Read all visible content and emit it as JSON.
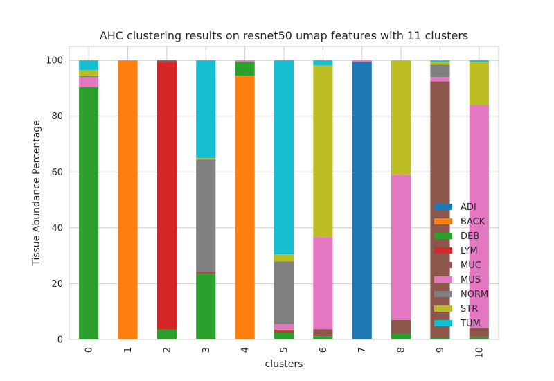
{
  "chart_data": {
    "type": "bar",
    "stacked": true,
    "title": "AHC clustering results on resnet50 umap features with 11 clusters",
    "xlabel": "clusters",
    "ylabel": "Tissue Abundance Percentage",
    "ylim": [
      0,
      105
    ],
    "yticks": [
      0,
      20,
      40,
      60,
      80,
      100
    ],
    "grid": true,
    "legend_position": "lower-right",
    "categories": [
      "0",
      "1",
      "2",
      "3",
      "4",
      "5",
      "6",
      "7",
      "8",
      "9",
      "10"
    ],
    "series": [
      {
        "name": "ADI",
        "color": "#1f77b4",
        "values": [
          0,
          0,
          0,
          0,
          0,
          0,
          0,
          99.5,
          0,
          0,
          0
        ]
      },
      {
        "name": "BACK",
        "color": "#ff7f0e",
        "values": [
          0,
          100,
          0,
          0,
          94.5,
          0,
          0,
          0,
          0,
          0,
          0
        ]
      },
      {
        "name": "DEB",
        "color": "#2ca02c",
        "values": [
          90.5,
          0,
          3.5,
          23.5,
          5,
          2.5,
          1.2,
          0,
          2,
          0.5,
          0.8
        ]
      },
      {
        "name": "LYM",
        "color": "#d62728",
        "values": [
          0,
          0,
          96,
          0,
          0,
          0.5,
          0,
          0,
          0,
          0,
          0
        ]
      },
      {
        "name": "MUC",
        "color": "#8c564b",
        "values": [
          0,
          0,
          0.5,
          1,
          0,
          0.5,
          2.5,
          0,
          5,
          92,
          3.2
        ]
      },
      {
        "name": "MUS",
        "color": "#e377c2",
        "values": [
          3.5,
          0,
          0,
          0,
          0.5,
          2,
          33,
          0.5,
          52,
          1.5,
          80
        ]
      },
      {
        "name": "NORM",
        "color": "#7f7f7f",
        "values": [
          0.5,
          0,
          0,
          40,
          0,
          22.5,
          0,
          0,
          0,
          4.5,
          0
        ]
      },
      {
        "name": "STR",
        "color": "#bcbd22",
        "values": [
          2,
          0,
          0,
          0.5,
          0,
          2.5,
          61.5,
          0,
          41,
          1,
          15.5
        ]
      },
      {
        "name": "TUM",
        "color": "#17becf",
        "values": [
          3.5,
          0,
          0,
          35,
          0,
          69.5,
          1.8,
          0,
          0,
          0.5,
          0.5
        ]
      }
    ]
  }
}
